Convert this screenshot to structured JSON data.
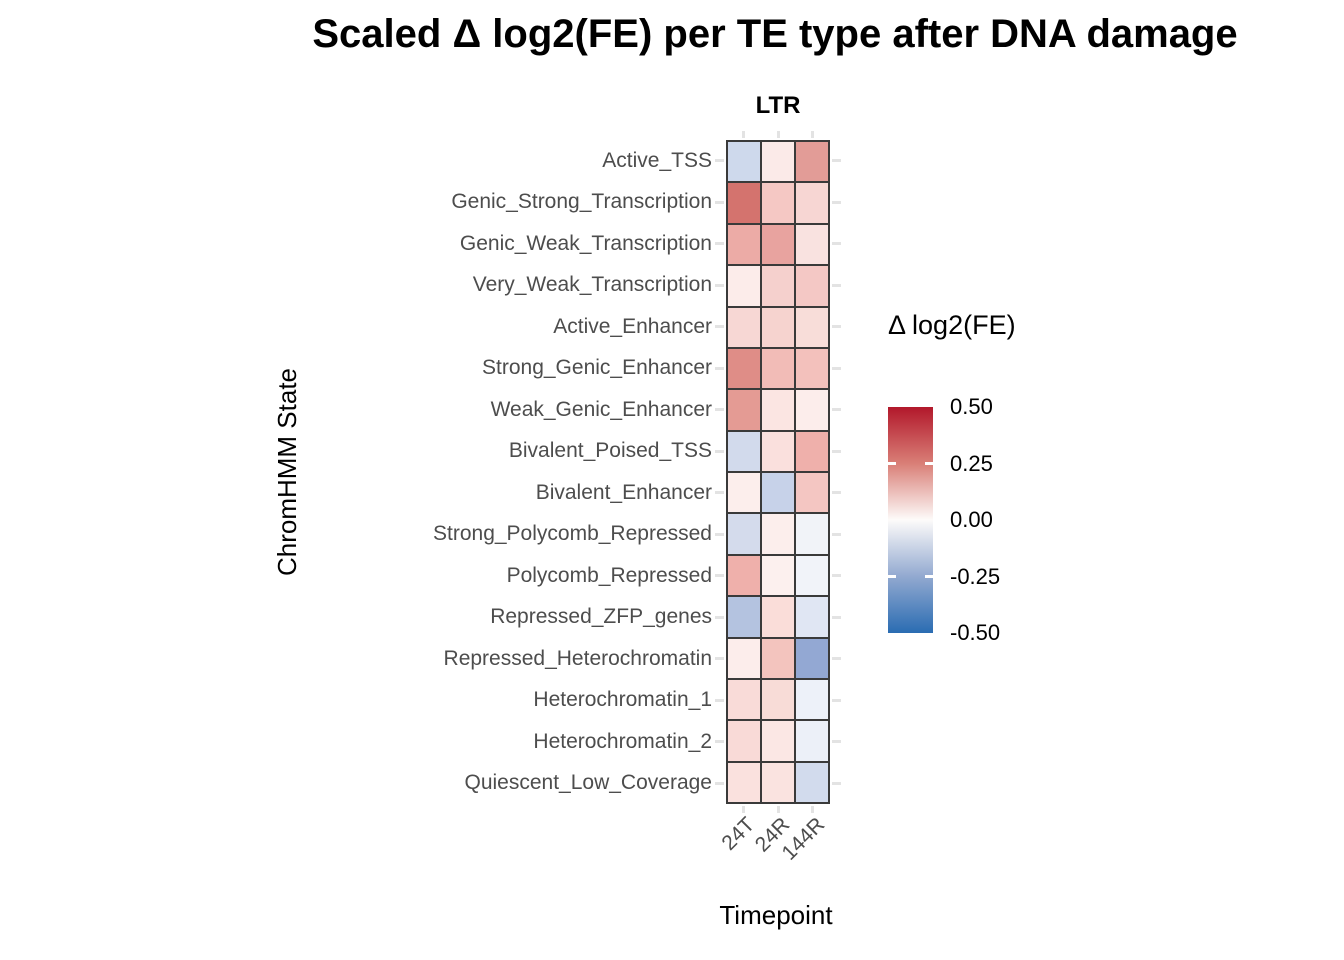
{
  "title": "Scaled Δ log2(FE) per TE type after DNA damage",
  "facet": {
    "label": "LTR"
  },
  "axes": {
    "x_title": "Timepoint",
    "y_title": "ChromHMM State"
  },
  "legend": {
    "title": "Δ log2(FE)",
    "tick_labels": [
      "0.50",
      "0.25",
      "0.00",
      "-0.25",
      "-0.50"
    ],
    "gradient_stops": [
      "#B2182B",
      "#D97F77",
      "#FDFBFA",
      "#92A9D0",
      "#2A6CB2"
    ]
  },
  "colors": {
    "background": "#FFFFFF",
    "cell_border": "#3A3A3A",
    "axis_text": "#4D4D4D",
    "title_text": "#000000",
    "grid_stub": "#E3E3E3",
    "high": "#B2182B",
    "mid": "#FFFFFF",
    "low": "#2A6CB2"
  },
  "chart_data": {
    "type": "heatmap",
    "title": "Scaled Δ log2(FE) per TE type after DNA damage",
    "facet": "LTR",
    "xlabel": "Timepoint",
    "ylabel": "ChromHMM State",
    "x": [
      "24T",
      "24R",
      "144R"
    ],
    "y": [
      "Active_TSS",
      "Genic_Strong_Transcription",
      "Genic_Weak_Transcription",
      "Very_Weak_Transcription",
      "Active_Enhancer",
      "Strong_Genic_Enhancer",
      "Weak_Genic_Enhancer",
      "Bivalent_Poised_TSS",
      "Bivalent_Enhancer",
      "Strong_Polycomb_Repressed",
      "Polycomb_Repressed",
      "Repressed_ZFP_genes",
      "Repressed_Heterochromatin",
      "Heterochromatin_1",
      "Heterochromatin_2",
      "Quiescent_Low_Coverage"
    ],
    "values": [
      [
        -0.12,
        0.05,
        0.21
      ],
      [
        0.31,
        0.12,
        0.09
      ],
      [
        0.17,
        0.2,
        0.06
      ],
      [
        0.04,
        0.1,
        0.12
      ],
      [
        0.09,
        0.1,
        0.07
      ],
      [
        0.26,
        0.14,
        0.13
      ],
      [
        0.22,
        0.05,
        0.04
      ],
      [
        -0.12,
        0.06,
        0.16
      ],
      [
        0.04,
        -0.15,
        0.12
      ],
      [
        -0.11,
        0.04,
        -0.02
      ],
      [
        0.16,
        0.03,
        -0.02
      ],
      [
        -0.19,
        0.07,
        -0.07
      ],
      [
        0.04,
        0.13,
        -0.28
      ],
      [
        0.07,
        0.07,
        -0.03
      ],
      [
        0.07,
        0.05,
        -0.04
      ],
      [
        0.06,
        0.06,
        -0.11
      ]
    ],
    "cell_colors": [
      [
        "#CED9EC",
        "#FBEAE8",
        "#E29C97"
      ],
      [
        "#D4736E",
        "#F5C8C4",
        "#F7D6D3"
      ],
      [
        "#ECABA6",
        "#E8A39F",
        "#F9E2E0"
      ],
      [
        "#FCECEA",
        "#F5D0CD",
        "#F4C8C5"
      ],
      [
        "#F7D7D4",
        "#F6D3CF",
        "#F8DDD9"
      ],
      [
        "#DF8D87",
        "#F2BCB7",
        "#F3C1BC"
      ],
      [
        "#E49B94",
        "#FBE5E2",
        "#FCEDEB"
      ],
      [
        "#D2DAEC",
        "#FAE0DD",
        "#EFB0AB"
      ],
      [
        "#FCEEEC",
        "#C7D2E9",
        "#F4C6C2"
      ],
      [
        "#D4DBEC",
        "#FCEEEC",
        "#F1F3F8"
      ],
      [
        "#EFB0AB",
        "#FCF0EE",
        "#F1F3F9"
      ],
      [
        "#B4C3E0",
        "#FADDD9",
        "#E0E6F3"
      ],
      [
        "#FCEDEB",
        "#F3C4BE",
        "#93A8D3"
      ],
      [
        "#F9DBD8",
        "#F8DCD7",
        "#EDF1F9"
      ],
      [
        "#F9DAD7",
        "#FBE7E4",
        "#ECF0F8"
      ],
      [
        "#FAE1DE",
        "#FAE3E0",
        "#D2DBED"
      ]
    ],
    "colorbar": {
      "label": "Δ log2(FE)",
      "min": -0.5,
      "max": 0.5,
      "ticks": [
        0.5,
        0.25,
        0.0,
        -0.25,
        -0.5
      ]
    },
    "layout": {
      "legend_position": "right",
      "grid": false
    }
  }
}
